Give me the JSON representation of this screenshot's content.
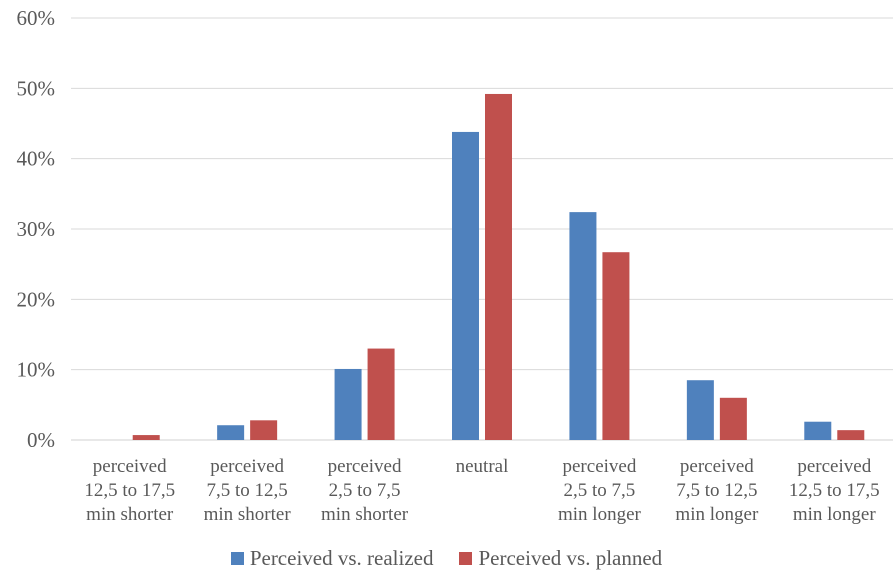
{
  "chart_data": {
    "type": "bar",
    "categories": [
      [
        "perceived",
        "12,5 to 17,5",
        "min shorter"
      ],
      [
        "perceived",
        "7,5 to 12,5",
        "min shorter"
      ],
      [
        "perceived",
        "2,5 to 7,5",
        "min shorter"
      ],
      [
        "neutral"
      ],
      [
        "perceived",
        "2,5 to 7,5",
        "min longer"
      ],
      [
        "perceived",
        "7,5 to 12,5",
        "min longer"
      ],
      [
        "perceived",
        "12,5 to 17,5",
        "min longer"
      ]
    ],
    "series": [
      {
        "name": "Perceived vs. realized",
        "color": "#4f81bd",
        "values": [
          0,
          2.1,
          10.1,
          43.8,
          32.4,
          8.5,
          2.6
        ]
      },
      {
        "name": "Perceived vs. planned",
        "color": "#c0504d",
        "values": [
          0.7,
          2.8,
          13.0,
          49.2,
          26.7,
          6.0,
          1.4
        ]
      }
    ],
    "y_ticks": [
      "0%",
      "10%",
      "20%",
      "30%",
      "40%",
      "50%",
      "60%"
    ],
    "ylim": [
      0,
      60
    ],
    "grid": true,
    "legend_position": "bottom",
    "title": "",
    "xlabel": "",
    "ylabel": ""
  }
}
